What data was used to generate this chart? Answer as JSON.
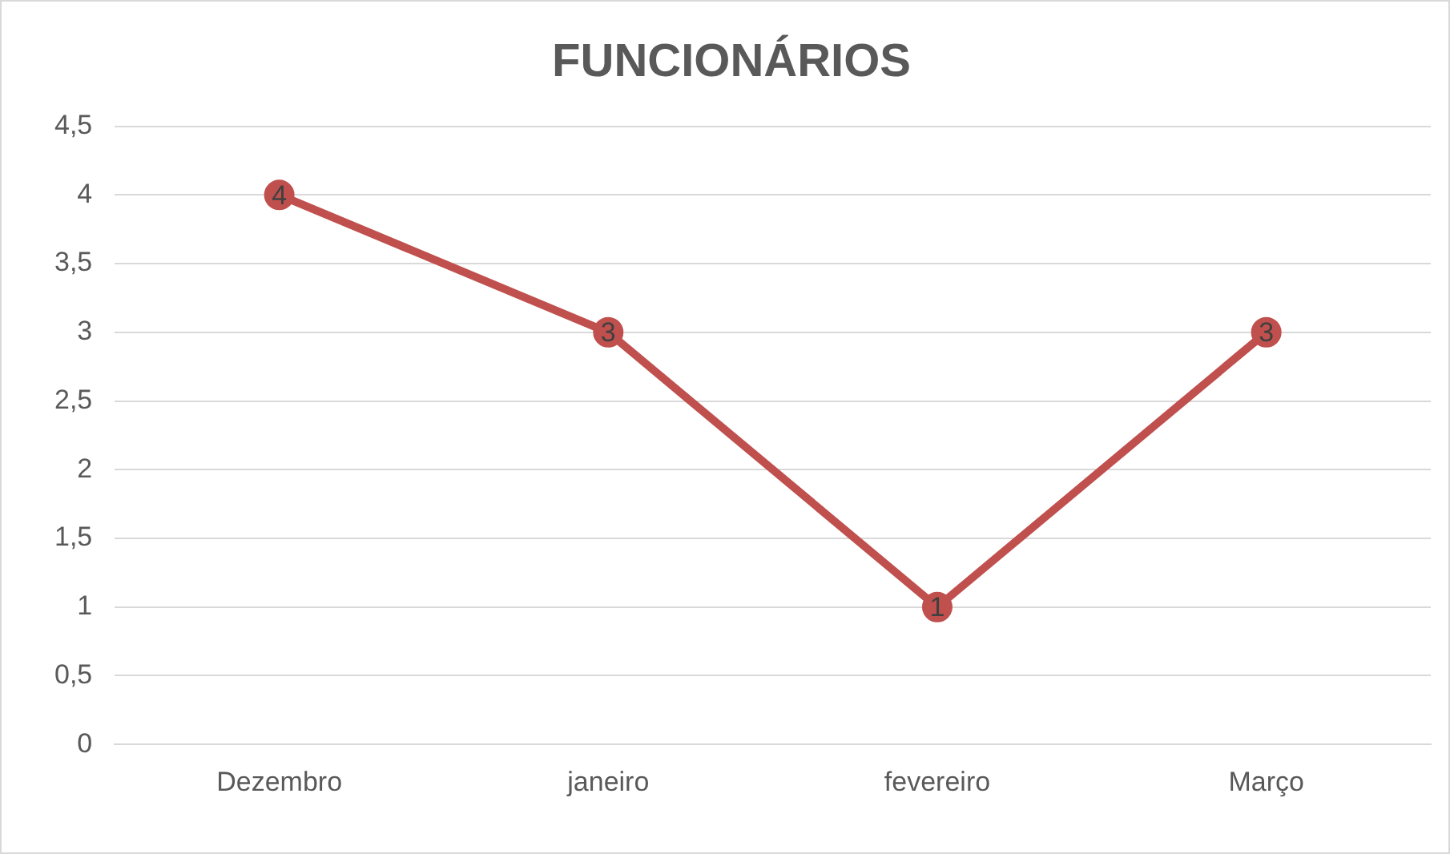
{
  "chart_data": {
    "type": "line",
    "title": "FUNCIONÁRIOS",
    "categories": [
      "Dezembro",
      "janeiro",
      "fevereiro",
      "Março"
    ],
    "values": [
      4,
      3,
      1,
      3
    ],
    "color": "#c0504d",
    "ylim": [
      0,
      4.5
    ],
    "yticks": [
      0,
      {
        "value": 0.5,
        "label": "0,5"
      },
      1,
      {
        "value": 1.5,
        "label": "1,5"
      },
      2,
      {
        "value": 2.5,
        "label": "2,5"
      },
      3,
      {
        "value": 3.5,
        "label": "3,5"
      },
      4,
      {
        "value": 4.5,
        "label": "4,5"
      }
    ],
    "grid": "y",
    "marker": "circle",
    "line_style": "solid",
    "data_labels": true,
    "legend": false
  }
}
